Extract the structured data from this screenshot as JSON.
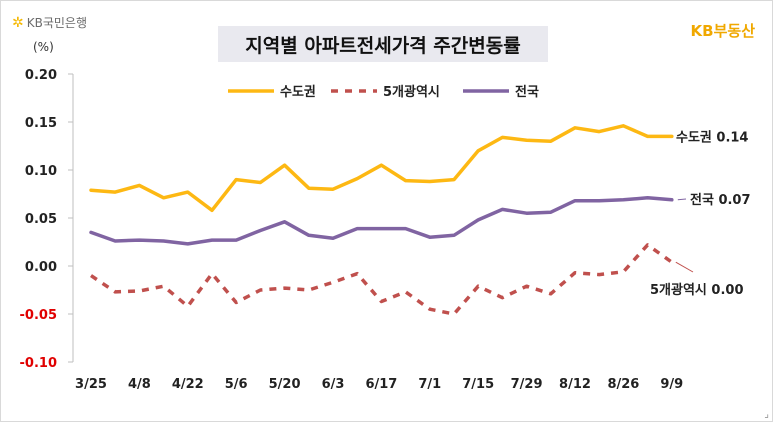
{
  "logo": {
    "text": "KB국민은행",
    "icon": "kb-star-icon"
  },
  "brand": "KB부동산",
  "title": "지역별 아파트전세가격 주간변동률",
  "unit": "(%)",
  "colors": {
    "seoul_metro": "#FDB813",
    "metro5": "#C0504D",
    "national": "#8064A2",
    "negative_tick": "#e00000"
  },
  "chart_data": {
    "type": "line",
    "title": "지역별 아파트전세가격 주간변동률",
    "ylabel": "(%)",
    "ylim": [
      -0.1,
      0.2
    ],
    "yticks": [
      "0.20",
      "0.15",
      "0.10",
      "0.05",
      "0.00",
      "-0.05",
      "-0.10"
    ],
    "yticks_values": [
      0.2,
      0.15,
      0.1,
      0.05,
      0.0,
      -0.05,
      -0.1
    ],
    "x": [
      "3/25",
      "4/1",
      "4/8",
      "4/15",
      "4/22",
      "4/29",
      "5/6",
      "5/13",
      "5/20",
      "5/27",
      "6/3",
      "6/10",
      "6/17",
      "6/24",
      "7/1",
      "7/8",
      "7/15",
      "7/22",
      "7/29",
      "8/5",
      "8/12",
      "8/19",
      "8/26",
      "9/2",
      "9/9"
    ],
    "xtick_labels": [
      "3/25",
      "4/8",
      "4/22",
      "5/6",
      "5/20",
      "6/3",
      "6/17",
      "7/1",
      "7/15",
      "7/29",
      "8/12",
      "8/26",
      "9/9"
    ],
    "grid": false,
    "legend": "top-center",
    "series": [
      {
        "name": "수도권",
        "style": "solid",
        "values": [
          0.079,
          0.077,
          0.084,
          0.071,
          0.077,
          0.058,
          0.09,
          0.087,
          0.105,
          0.081,
          0.08,
          0.091,
          0.105,
          0.089,
          0.088,
          0.09,
          0.12,
          0.134,
          0.131,
          0.13,
          0.144,
          0.14,
          0.146,
          0.135,
          0.135
        ],
        "end_label": "수도권 0.14"
      },
      {
        "name": "5개광역시",
        "style": "dashed",
        "values": [
          -0.01,
          -0.027,
          -0.026,
          -0.021,
          -0.042,
          -0.008,
          -0.038,
          -0.025,
          -0.023,
          -0.025,
          -0.017,
          -0.008,
          -0.037,
          -0.027,
          -0.045,
          -0.05,
          -0.021,
          -0.033,
          -0.021,
          -0.029,
          -0.007,
          -0.009,
          -0.006,
          0.022,
          0.004
        ],
        "end_label": "5개광역시 0.00"
      },
      {
        "name": "전국",
        "style": "solid",
        "values": [
          0.035,
          0.026,
          0.027,
          0.026,
          0.023,
          0.027,
          0.027,
          0.037,
          0.046,
          0.032,
          0.029,
          0.039,
          0.039,
          0.039,
          0.03,
          0.032,
          0.048,
          0.059,
          0.055,
          0.056,
          0.068,
          0.068,
          0.069,
          0.071,
          0.069
        ],
        "end_label": "전국 0.07"
      }
    ]
  }
}
